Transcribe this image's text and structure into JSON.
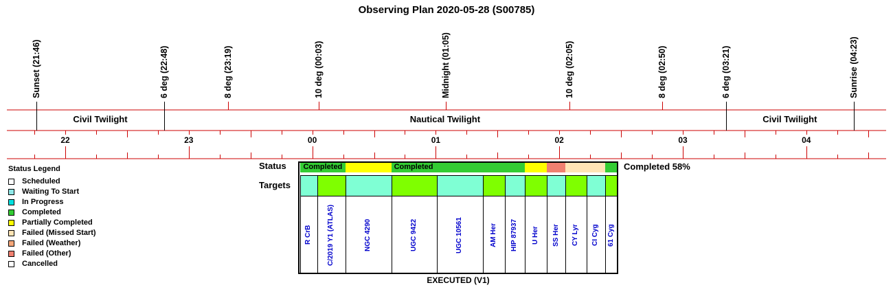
{
  "title": "Observing Plan 2020-05-28 (S00785)",
  "events": [
    {
      "label": "Sunset (21:46)",
      "hour": 21.7667
    },
    {
      "label": "6 deg (22:48)",
      "hour": 22.8
    },
    {
      "label": "8 deg (23:19)",
      "hour": 23.3167
    },
    {
      "label": "10 deg (00:03)",
      "hour": 24.05
    },
    {
      "label": "Midnight (01:05)",
      "hour": 25.0833
    },
    {
      "label": "10 deg (02:05)",
      "hour": 26.0833
    },
    {
      "label": "8 deg (02:50)",
      "hour": 26.8333
    },
    {
      "label": "6 deg (03:21)",
      "hour": 27.35
    },
    {
      "label": "Sunrise (04:23)",
      "hour": 28.3833
    }
  ],
  "twilight_bands": [
    {
      "label": "Civil Twilight",
      "from_hour": 21.7667,
      "to_hour": 22.8
    },
    {
      "label": "Nautical Twilight",
      "from_hour": 22.8,
      "to_hour": 27.35
    },
    {
      "label": "Civil Twilight",
      "from_hour": 27.35,
      "to_hour": 28.3833
    }
  ],
  "hour_ticks": [
    {
      "label": "22",
      "hour": 22
    },
    {
      "label": "23",
      "hour": 23
    },
    {
      "label": "00",
      "hour": 24
    },
    {
      "label": "01",
      "hour": 25
    },
    {
      "label": "02",
      "hour": 26
    },
    {
      "label": "03",
      "hour": 27
    },
    {
      "label": "04",
      "hour": 28
    }
  ],
  "legend": {
    "title": "Status Legend",
    "items": [
      {
        "label": "Scheduled",
        "color": "#ffffff"
      },
      {
        "label": "Waiting To Start",
        "color": "#8fe8e8"
      },
      {
        "label": "In Progress",
        "color": "#00e0e0"
      },
      {
        "label": "Completed",
        "color": "#33cc33"
      },
      {
        "label": "Partially Completed",
        "color": "#ffff00"
      },
      {
        "label": "Failed (Missed Start)",
        "color": "#ffe4b5"
      },
      {
        "label": "Failed (Weather)",
        "color": "#f5a77a"
      },
      {
        "label": "Failed (Other)",
        "color": "#f08070"
      },
      {
        "label": "Cancelled",
        "color": "#ffffff"
      }
    ]
  },
  "plan": {
    "status_label": "Status",
    "targets_label": "Targets",
    "completed_text": "Completed 58%",
    "footer": "EXECUTED (V1)",
    "status_segments": [
      {
        "label": "Completed",
        "color": "#33cc33",
        "from_hour": 23.9,
        "to_hour": 24.27
      },
      {
        "label": "",
        "color": "#ffff00",
        "from_hour": 24.27,
        "to_hour": 24.64
      },
      {
        "label": "Completed",
        "color": "#33cc33",
        "from_hour": 24.64,
        "to_hour": 25.0
      },
      {
        "label": "",
        "color": "#33cc33",
        "from_hour": 25.0,
        "to_hour": 25.72
      },
      {
        "label": "",
        "color": "#ffff00",
        "from_hour": 25.72,
        "to_hour": 25.9
      },
      {
        "label": "",
        "color": "#f08070",
        "from_hour": 25.9,
        "to_hour": 26.05
      },
      {
        "label": "",
        "color": "#ffe4b5",
        "from_hour": 26.05,
        "to_hour": 26.37
      },
      {
        "label": "",
        "color": "#33cc33",
        "from_hour": 26.37,
        "to_hour": 26.47
      }
    ],
    "targets": [
      {
        "name": "R CrB",
        "color": "#7fffd4",
        "from_hour": 23.9,
        "to_hour": 24.04
      },
      {
        "name": "C/2019 Y1 (ATLAS)",
        "color": "#7fff00",
        "from_hour": 24.04,
        "to_hour": 24.27
      },
      {
        "name": "NGC 4290",
        "color": "#7fffd4",
        "from_hour": 24.27,
        "to_hour": 24.64
      },
      {
        "name": "UGC 9422",
        "color": "#7fff00",
        "from_hour": 24.64,
        "to_hour": 25.01
      },
      {
        "name": "UGC 10561",
        "color": "#7fffd4",
        "from_hour": 25.01,
        "to_hour": 25.38
      },
      {
        "name": "AM Her",
        "color": "#7fff00",
        "from_hour": 25.38,
        "to_hour": 25.56
      },
      {
        "name": "HIP 87937",
        "color": "#7fffd4",
        "from_hour": 25.56,
        "to_hour": 25.72
      },
      {
        "name": "U Her",
        "color": "#7fff00",
        "from_hour": 25.72,
        "to_hour": 25.9
      },
      {
        "name": "SS Her",
        "color": "#7fffd4",
        "from_hour": 25.9,
        "to_hour": 26.05
      },
      {
        "name": "CY Lyr",
        "color": "#7fff00",
        "from_hour": 26.05,
        "to_hour": 26.22
      },
      {
        "name": "CI Cyg",
        "color": "#7fffd4",
        "from_hour": 26.22,
        "to_hour": 26.37
      },
      {
        "name": "61 Cyg",
        "color": "#7fff00",
        "from_hour": 26.37,
        "to_hour": 26.47
      }
    ]
  }
}
